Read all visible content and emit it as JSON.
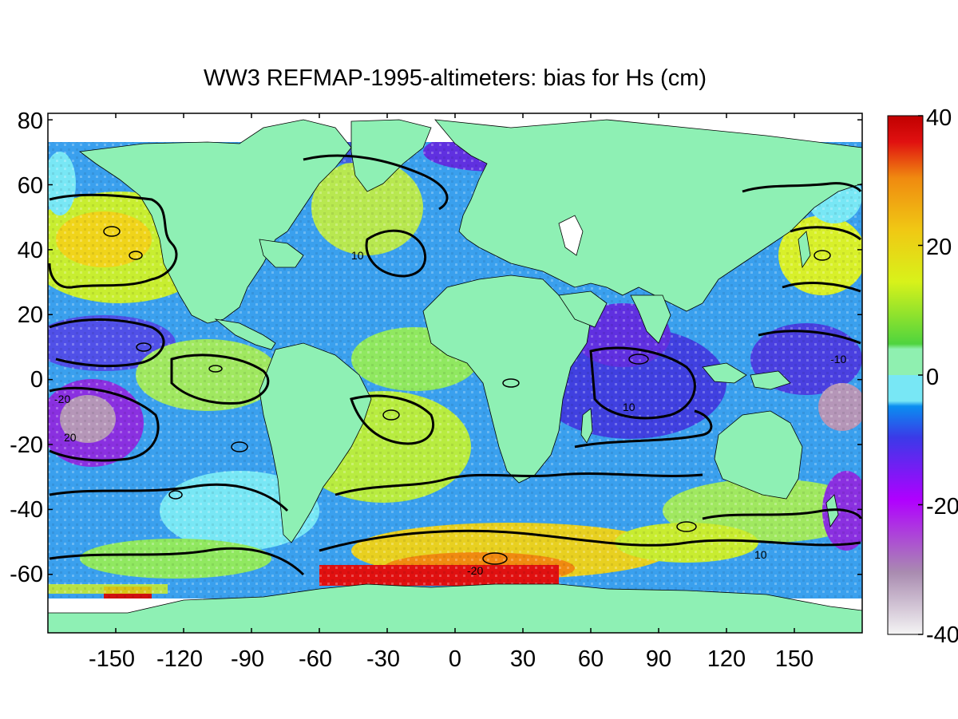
{
  "title": "WW3 REFMAP-1995-altimeters: bias for Hs (cm)",
  "axes": {
    "lon_range": [
      -180,
      180
    ],
    "lat_range": [
      -78,
      82
    ],
    "x_ticks": [
      "-150",
      "-120",
      "-90",
      "-60",
      "-30",
      "0",
      "30",
      "60",
      "90",
      "120",
      "150"
    ],
    "y_ticks": [
      "80",
      "60",
      "40",
      "20",
      "0",
      "-20",
      "-40",
      "-60"
    ]
  },
  "colorbar": {
    "range": [
      -40,
      40
    ],
    "tick_labels": [
      "40",
      "20",
      "0",
      "-20",
      "-40"
    ],
    "colors_low_to_high": [
      "#f4f4f4",
      "#a98bb0",
      "#b000ff",
      "#3a3ae8",
      "#0a8ef0",
      "#78e7f5",
      "#8ff0b0",
      "#4fd43e",
      "#d8f21a",
      "#f0c814",
      "#f08a10",
      "#e01010",
      "#c00000"
    ]
  },
  "map_colors": {
    "land": "#8ef0b4",
    "no_data": "#ffffff",
    "contour": "#000000"
  },
  "contour_labels": [
    "10",
    "10",
    "-20",
    "20",
    "-10",
    "10",
    "-20"
  ]
}
